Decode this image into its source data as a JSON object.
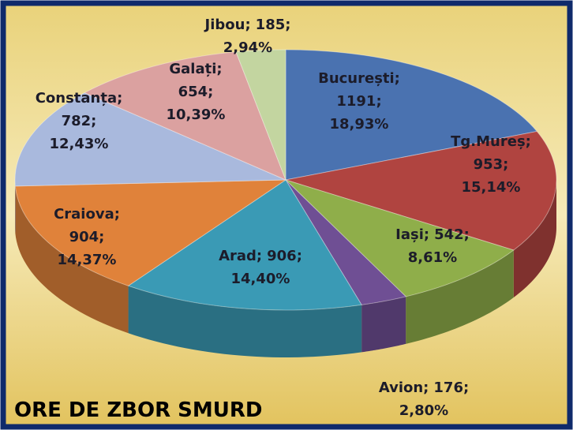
{
  "chart_data": {
    "type": "pie",
    "title": "ORE DE ZBOR SMURD",
    "categories": [
      "București;",
      "Tg.Mureș;",
      "Iași;",
      "Avion;",
      "Arad;",
      "Craiova;",
      "Constanța;",
      "Galați;",
      "Jibou;"
    ],
    "values": [
      1191,
      953,
      542,
      176,
      906,
      904,
      782,
      654,
      185
    ],
    "value_labels": [
      "1191;",
      "953;",
      "542;",
      "176;",
      "906;",
      "904;",
      "782;",
      "654;",
      "185;"
    ],
    "percents": [
      18.93,
      15.14,
      8.61,
      2.8,
      14.4,
      14.37,
      12.43,
      10.39,
      2.94
    ],
    "percent_labels": [
      "18,93%",
      "15,14%",
      "8,61%",
      "2,80%",
      "14,40%",
      "14,37%",
      "12,43%",
      "10,39%",
      "2,94%"
    ],
    "colors": [
      "#4a72b0",
      "#b04440",
      "#8fae4a",
      "#6f4f94",
      "#3a9ab5",
      "#e0823a",
      "#a9b9dd",
      "#dba1a0",
      "#c3d5a0"
    ]
  }
}
